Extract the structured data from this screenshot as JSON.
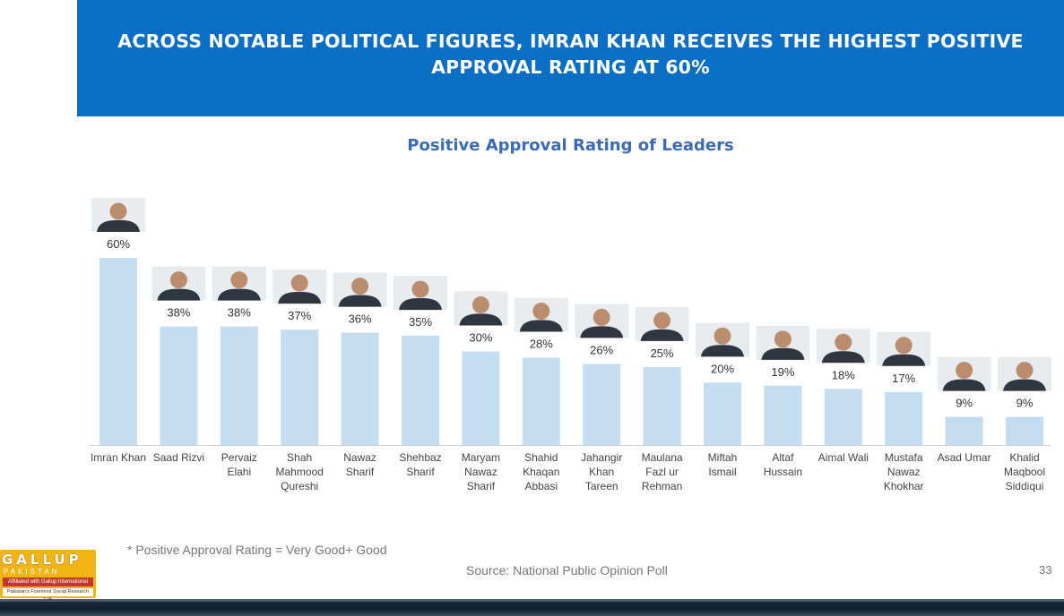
{
  "banner": {
    "line1": "ACROSS NOTABLE POLITICAL FIGURES, IMRAN KHAN RECEIVES THE HIGHEST POSITIVE",
    "line2": "APPROVAL RATING AT 60%"
  },
  "chart_data": {
    "type": "bar",
    "title": "Positive Approval Rating of Leaders",
    "categories": [
      "Imran Khan",
      "Saad Rizvi",
      "Pervaiz Elahi",
      "Shah Mahmood Qureshi",
      "Nawaz Sharif",
      "Shehbaz Sharif",
      "Maryam Nawaz Sharif",
      "Shahid Khaqan Abbasi",
      "Jahangir Khan Tareen",
      "Maulana Fazl ur Rehman",
      "Miftah Ismail",
      "Altaf Hussain",
      "Aimal Wali",
      "Mustafa Nawaz Khokhar",
      "Asad Umar",
      "Khalid Maqbool Siddiqui"
    ],
    "category_lines": [
      [
        "Imran Khan"
      ],
      [
        "Saad Rizvi"
      ],
      [
        "Pervaiz",
        "Elahi"
      ],
      [
        "Shah",
        "Mahmood",
        "Qureshi"
      ],
      [
        "Nawaz",
        "Sharif"
      ],
      [
        "Shehbaz",
        "Sharif"
      ],
      [
        "Maryam",
        "Nawaz",
        "Sharif"
      ],
      [
        "Shahid",
        "Khaqan",
        "Abbasi"
      ],
      [
        "Jahangir",
        "Khan",
        "Tareen"
      ],
      [
        "Maulana",
        "Fazl ur",
        "Rehman"
      ],
      [
        "Miftah",
        "Ismail"
      ],
      [
        "Altaf",
        "Hussain"
      ],
      [
        "Aimal Wali"
      ],
      [
        "Mustafa",
        "Nawaz",
        "Khokhar"
      ],
      [
        "Asad Umar"
      ],
      [
        "Khalid",
        "Maqbool",
        "Siddiqui"
      ]
    ],
    "values": [
      60,
      38,
      38,
      37,
      36,
      35,
      30,
      28,
      26,
      25,
      20,
      19,
      18,
      17,
      9,
      9
    ],
    "value_labels": [
      "60%",
      "38%",
      "38%",
      "37%",
      "36%",
      "35%",
      "30%",
      "28%",
      "26%",
      "25%",
      "20%",
      "19%",
      "18%",
      "17%",
      "9%",
      "9%"
    ],
    "ylim": [
      0,
      60
    ],
    "xlabel": "",
    "ylabel": "",
    "grid": false,
    "bar_color": "#c5ddf1"
  },
  "footnote": "* Positive Approval Rating = Very Good+ Good",
  "source": "Source: National Public Opinion Poll",
  "page_number": "33",
  "logo": {
    "name": "GALLUP",
    "sub": "PAKISTAN",
    "affiliation": "Affiliated with Gallup International",
    "tagline": "Pakistan's Foremost Social Research Lab"
  },
  "colors": {
    "banner": "#0a6fc4",
    "title": "#3b6bb5",
    "bar": "#c5ddf1",
    "logo": "#f2b316"
  }
}
